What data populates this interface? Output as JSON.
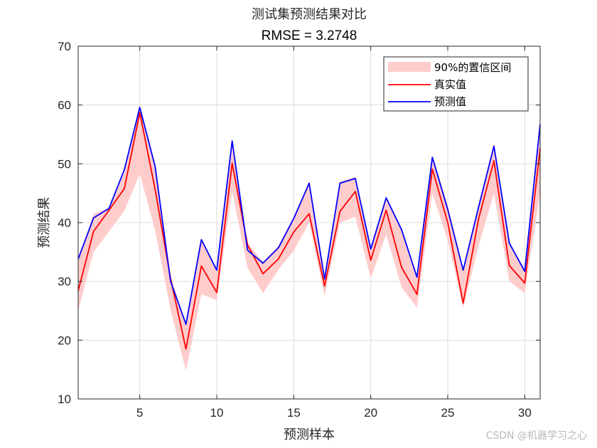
{
  "chart_data": {
    "type": "line",
    "title": "测试集预测结果对比",
    "subtitle": "RMSE = 3.2748",
    "xlabel": "预测样本",
    "ylabel": "预测结果",
    "xlim": [
      1,
      31
    ],
    "ylim": [
      10,
      70
    ],
    "xticks": [
      5,
      10,
      15,
      20,
      25,
      30
    ],
    "yticks": [
      10,
      20,
      30,
      40,
      50,
      60,
      70
    ],
    "grid": true,
    "legend_position": "top-right",
    "x": [
      1,
      2,
      3,
      4,
      5,
      6,
      7,
      8,
      9,
      10,
      11,
      12,
      13,
      14,
      15,
      16,
      17,
      18,
      19,
      20,
      21,
      22,
      23,
      24,
      25,
      26,
      27,
      28,
      29,
      30,
      31
    ],
    "band": {
      "name": "90%的置信区间",
      "color": "#ffcccc",
      "lower": [
        25.0,
        35.0,
        38.5,
        42.0,
        48.3,
        38.6,
        25.2,
        14.8,
        27.8,
        26.8,
        45.3,
        32.3,
        28.0,
        32.0,
        35.2,
        40.0,
        27.5,
        40.0,
        41.0,
        30.5,
        38.0,
        29.0,
        25.5,
        45.0,
        37.0,
        25.5,
        36.0,
        45.0,
        30.0,
        28.0,
        45.0
      ],
      "upper": [
        33.5,
        41.5,
        42.5,
        48.5,
        59.2,
        50.0,
        31.0,
        22.5,
        37.2,
        32.0,
        54.0,
        36.5,
        33.3,
        36.0,
        41.0,
        46.8,
        30.5,
        47.0,
        47.8,
        36.0,
        44.5,
        39.0,
        31.0,
        51.5,
        43.0,
        32.0,
        43.0,
        53.5,
        36.5,
        32.0,
        57.0
      ]
    },
    "series": [
      {
        "name": "真实值",
        "color": "#ff0000",
        "values": [
          28.4,
          38.5,
          42.1,
          45.8,
          58.7,
          45.6,
          30.5,
          18.5,
          32.6,
          28.1,
          50.1,
          36.2,
          31.3,
          33.8,
          38.4,
          41.5,
          29.2,
          41.9,
          45.3,
          33.6,
          42.1,
          32.4,
          27.8,
          49.1,
          40.0,
          26.3,
          40.6,
          50.5,
          32.7,
          29.7,
          52.6
        ]
      },
      {
        "name": "预测值",
        "color": "#0000ff",
        "values": [
          33.8,
          40.8,
          42.4,
          49.0,
          59.6,
          49.5,
          30.0,
          22.7,
          37.1,
          31.9,
          53.9,
          35.3,
          33.1,
          35.7,
          40.7,
          46.7,
          30.4,
          46.7,
          47.5,
          35.5,
          44.2,
          38.8,
          30.7,
          51.1,
          42.2,
          31.9,
          42.6,
          53.0,
          36.5,
          31.7,
          56.7
        ]
      }
    ]
  },
  "watermark": "CSDN @机器学习之心"
}
